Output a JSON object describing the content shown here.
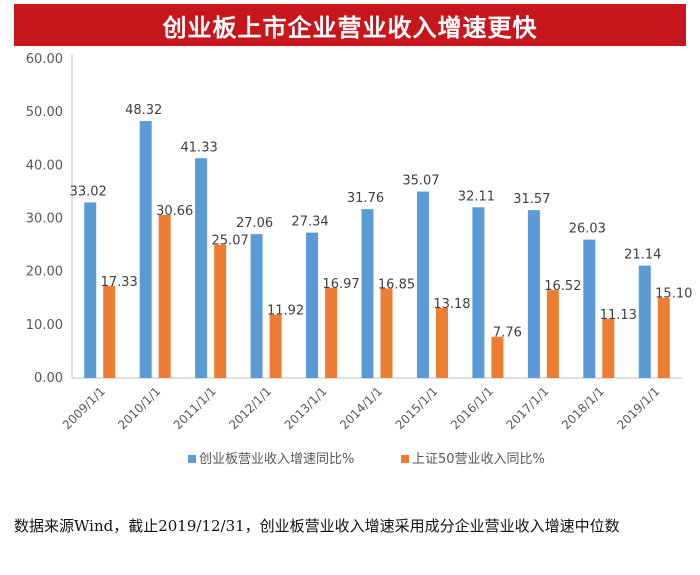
{
  "header": {
    "title": "创业板上市企业营业收入增速更快"
  },
  "chart_data": {
    "type": "bar",
    "title": "创业板上市企业营业收入增速更快",
    "categories": [
      "2009/1/1",
      "2010/1/1",
      "2011/1/1",
      "2012/1/1",
      "2013/1/1",
      "2014/1/1",
      "2015/1/1",
      "2016/1/1",
      "2017/1/1",
      "2018/1/1",
      "2019/1/1"
    ],
    "series": [
      {
        "name": "创业板营业收入增速同比%",
        "color": "#5b9bd5",
        "values": [
          33.02,
          48.32,
          41.33,
          27.06,
          27.34,
          31.76,
          35.07,
          32.11,
          31.57,
          26.03,
          21.14
        ],
        "labels": [
          "33.02",
          "48.32",
          "41.33",
          "27.06",
          "27.34",
          "31.76",
          "35.07",
          "32.11",
          "31.57",
          "26.03",
          "21.14"
        ]
      },
      {
        "name": "上证50营业收入同比%",
        "color": "#ed7d31",
        "values": [
          17.33,
          30.66,
          25.07,
          11.92,
          16.97,
          16.85,
          13.18,
          7.76,
          16.52,
          11.13,
          15.1
        ],
        "labels": [
          "17.33",
          "30.66",
          "25.07",
          "11.92",
          "16.97",
          "16.85",
          "13.18",
          "7.76",
          "16.52",
          "11.13",
          "15.10"
        ]
      }
    ],
    "yticks": [
      "0.00",
      "10.00",
      "20.00",
      "30.00",
      "40.00",
      "50.00",
      "60.00"
    ],
    "ylim": [
      0,
      60
    ],
    "grid": false,
    "legend": "bottom"
  },
  "footnote": {
    "text": "数据来源Wind，截止2019/12/31，创业板营业收入增速采用成分企业营业收入增速中位数"
  }
}
